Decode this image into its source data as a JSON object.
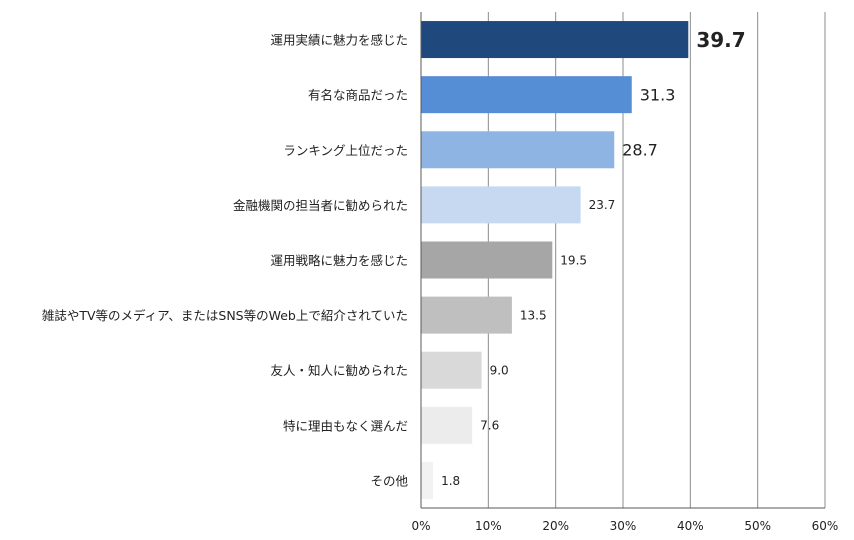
{
  "chart_data": {
    "type": "bar",
    "orientation": "horizontal",
    "categories": [
      "運用実績に魅力を感じた",
      "有名な商品だった",
      "ランキング上位だった",
      "金融機関の担当者に勧められた",
      "運用戦略に魅力を感じた",
      "雑誌やTV等のメディア、またはSNS等のWeb上で紹介されていた",
      "友人・知人に勧められた",
      "特に理由もなく選んだ",
      "その他"
    ],
    "values": [
      39.7,
      31.3,
      28.7,
      23.7,
      19.5,
      13.5,
      9.0,
      7.6,
      1.8
    ],
    "value_labels": [
      "39.7",
      "31.3",
      "28.7",
      "23.7",
      "19.5",
      "13.5",
      "9.0",
      "7.6",
      "1.8"
    ],
    "bar_colors": [
      "#1f497d",
      "#558ed5",
      "#8eb4e3",
      "#c6d9f1",
      "#a6a6a6",
      "#bfbfbf",
      "#d9d9d9",
      "#ececec",
      "#f2f2f2"
    ],
    "xlim": [
      0,
      60
    ],
    "xticks": [
      "0%",
      "10%",
      "20%",
      "30%",
      "40%",
      "50%",
      "60%"
    ],
    "grid": true,
    "xlabel": "",
    "ylabel": "",
    "title": ""
  }
}
